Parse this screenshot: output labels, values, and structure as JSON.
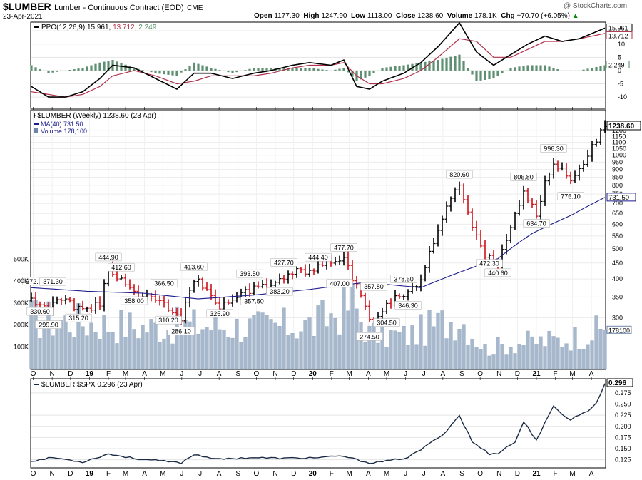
{
  "header": {
    "symbol": "$LUMBER",
    "description": "Lumber - Continuous Contract (EOD)",
    "exchange": "CME",
    "date": "23-Apr-2021",
    "watermark": "@ StockCharts.com",
    "quote": {
      "open_label": "Open",
      "open": "1177.30",
      "high_label": "High",
      "high": "1247.90",
      "low_label": "Low",
      "low": "1113.00",
      "close_label": "Close",
      "close": "1238.60",
      "volume_label": "Volume",
      "volume": "178.1K",
      "chg_label": "Chg",
      "chg": "+70.70 (+6.05%)",
      "chg_arrow": "▲"
    }
  },
  "ppo_panel": {
    "legend_name": "PPO(12,26,9)",
    "ppo_value": "15.961",
    "signal_value": "13.712",
    "hist_value": "2.249",
    "colors": {
      "ppo": "#000000",
      "signal": "#b0304a",
      "hist": "#5f8f72"
    },
    "axis_ticks": [
      "15",
      "10",
      "5",
      "0",
      "-5",
      "-10"
    ],
    "tag_ppo": "15.961",
    "tag_signal": "13.712",
    "tag_hist": "2.249"
  },
  "price_panel": {
    "legend_title": "$LUMBER (Weekly) 1238.60 (23 Apr)",
    "legend_ma": "MA(40) 731.50",
    "legend_volume": "Volume 178,100",
    "colors": {
      "up": "#000000",
      "down": "#d0101a",
      "ma": "#1c1c8c",
      "volume": "#a7b8cc"
    },
    "price_ticks": [
      "1200",
      "1150",
      "1100",
      "1050",
      "1000",
      "950",
      "900",
      "850",
      "800",
      "750",
      "700",
      "650",
      "600",
      "550",
      "500",
      "450",
      "400",
      "350",
      "300"
    ],
    "volume_ticks": [
      "500K",
      "400K",
      "300K",
      "200K",
      "100K"
    ],
    "tag_close": "1238.60",
    "tag_ma": "731.50",
    "tag_volume": "178100",
    "annotations": [
      {
        "text": "372.00",
        "date": "2018-10-05",
        "price": 372.0,
        "pos": "above"
      },
      {
        "text": "330.60",
        "date": "2018-10-12",
        "price": 330.6,
        "pos": "below"
      },
      {
        "text": "299.90",
        "date": "2018-10-26",
        "price": 299.9,
        "pos": "below"
      },
      {
        "text": "371.30",
        "date": "2018-11-02",
        "price": 371.3,
        "pos": "above"
      },
      {
        "text": "315.20",
        "date": "2018-12-14",
        "price": 315.2,
        "pos": "below"
      },
      {
        "text": "444.90",
        "date": "2019-02-01",
        "price": 444.9,
        "pos": "above"
      },
      {
        "text": "412.60",
        "date": "2019-02-22",
        "price": 412.6,
        "pos": "above"
      },
      {
        "text": "358.00",
        "date": "2019-03-15",
        "price": 358.0,
        "pos": "below"
      },
      {
        "text": "366.50",
        "date": "2019-05-03",
        "price": 366.5,
        "pos": "above"
      },
      {
        "text": "310.20",
        "date": "2019-05-10",
        "price": 310.2,
        "pos": "below"
      },
      {
        "text": "286.10",
        "date": "2019-05-31",
        "price": 286.1,
        "pos": "below"
      },
      {
        "text": "413.60",
        "date": "2019-06-21",
        "price": 413.6,
        "pos": "above"
      },
      {
        "text": "325.90",
        "date": "2019-08-02",
        "price": 325.9,
        "pos": "below"
      },
      {
        "text": "393.50",
        "date": "2019-09-20",
        "price": 393.5,
        "pos": "above"
      },
      {
        "text": "357.50",
        "date": "2019-09-27",
        "price": 357.5,
        "pos": "below"
      },
      {
        "text": "383.20",
        "date": "2019-11-08",
        "price": 383.2,
        "pos": "below"
      },
      {
        "text": "427.70",
        "date": "2019-11-15",
        "price": 427.7,
        "pos": "above"
      },
      {
        "text": "444.40",
        "date": "2020-01-10",
        "price": 444.4,
        "pos": "above"
      },
      {
        "text": "477.70",
        "date": "2020-02-21",
        "price": 477.7,
        "pos": "above"
      },
      {
        "text": "407.00",
        "date": "2020-02-14",
        "price": 407.0,
        "pos": "below"
      },
      {
        "text": "274.50",
        "date": "2020-04-03",
        "price": 274.5,
        "pos": "below"
      },
      {
        "text": "357.80",
        "date": "2020-04-10",
        "price": 357.8,
        "pos": "above"
      },
      {
        "text": "304.50",
        "date": "2020-05-01",
        "price": 304.5,
        "pos": "below"
      },
      {
        "text": "378.50",
        "date": "2020-05-29",
        "price": 378.5,
        "pos": "above"
      },
      {
        "text": "346.30",
        "date": "2020-06-05",
        "price": 346.3,
        "pos": "below"
      },
      {
        "text": "820.60",
        "date": "2020-08-28",
        "price": 820.6,
        "pos": "above"
      },
      {
        "text": "472.30",
        "date": "2020-10-16",
        "price": 472.3,
        "pos": "below"
      },
      {
        "text": "440.60",
        "date": "2020-10-30",
        "price": 440.6,
        "pos": "below"
      },
      {
        "text": "806.80",
        "date": "2020-12-11",
        "price": 806.8,
        "pos": "above"
      },
      {
        "text": "634.70",
        "date": "2021-01-01",
        "price": 634.7,
        "pos": "below"
      },
      {
        "text": "996.30",
        "date": "2021-01-29",
        "price": 996.3,
        "pos": "above"
      },
      {
        "text": "776.10",
        "date": "2021-02-26",
        "price": 776.1,
        "pos": "below"
      }
    ]
  },
  "ratio_panel": {
    "legend": "$LUMBER:$SPX 0.296 (23 Apr)",
    "color": "#1a2a44",
    "axis_ticks": [
      "0.275",
      "0.250",
      "0.225",
      "0.200",
      "0.175",
      "0.150",
      "0.125"
    ],
    "tag": "0.296"
  },
  "x_axis": {
    "labels": [
      {
        "text": "O",
        "date": "2018-10-01",
        "bold": false
      },
      {
        "text": "N",
        "date": "2018-11-01",
        "bold": false
      },
      {
        "text": "D",
        "date": "2018-12-01",
        "bold": false
      },
      {
        "text": "19",
        "date": "2019-01-01",
        "bold": true
      },
      {
        "text": "F",
        "date": "2019-02-01",
        "bold": false
      },
      {
        "text": "M",
        "date": "2019-03-01",
        "bold": false
      },
      {
        "text": "A",
        "date": "2019-04-01",
        "bold": false
      },
      {
        "text": "M",
        "date": "2019-05-01",
        "bold": false
      },
      {
        "text": "J",
        "date": "2019-06-01",
        "bold": false
      },
      {
        "text": "J",
        "date": "2019-07-01",
        "bold": false
      },
      {
        "text": "A",
        "date": "2019-08-01",
        "bold": false
      },
      {
        "text": "S",
        "date": "2019-09-01",
        "bold": false
      },
      {
        "text": "O",
        "date": "2019-10-01",
        "bold": false
      },
      {
        "text": "N",
        "date": "2019-11-01",
        "bold": false
      },
      {
        "text": "D",
        "date": "2019-12-01",
        "bold": false
      },
      {
        "text": "20",
        "date": "2020-01-01",
        "bold": true
      },
      {
        "text": "F",
        "date": "2020-02-01",
        "bold": false
      },
      {
        "text": "M",
        "date": "2020-03-01",
        "bold": false
      },
      {
        "text": "A",
        "date": "2020-04-01",
        "bold": false
      },
      {
        "text": "M",
        "date": "2020-05-01",
        "bold": false
      },
      {
        "text": "J",
        "date": "2020-06-01",
        "bold": false
      },
      {
        "text": "J",
        "date": "2020-07-01",
        "bold": false
      },
      {
        "text": "A",
        "date": "2020-08-01",
        "bold": false
      },
      {
        "text": "S",
        "date": "2020-09-01",
        "bold": false
      },
      {
        "text": "O",
        "date": "2020-10-01",
        "bold": false
      },
      {
        "text": "N",
        "date": "2020-11-01",
        "bold": false
      },
      {
        "text": "D",
        "date": "2020-12-01",
        "bold": false
      },
      {
        "text": "21",
        "date": "2021-01-01",
        "bold": true
      },
      {
        "text": "F",
        "date": "2021-02-01",
        "bold": false
      },
      {
        "text": "M",
        "date": "2021-03-01",
        "bold": false
      },
      {
        "text": "A",
        "date": "2021-04-01",
        "bold": false
      }
    ]
  },
  "chart_data": [
    {
      "type": "line",
      "panel": "ppo",
      "x_range": [
        "2018-09-28",
        "2021-04-23"
      ],
      "ylim": [
        -14,
        18
      ],
      "grid": true,
      "series_ppo": {
        "x": [
          "2018-09-28",
          "2018-10-26",
          "2018-11-23",
          "2018-12-21",
          "2019-01-18",
          "2019-02-08",
          "2019-03-15",
          "2019-04-19",
          "2019-05-24",
          "2019-06-21",
          "2019-07-19",
          "2019-08-23",
          "2019-09-27",
          "2019-10-25",
          "2019-11-29",
          "2019-12-27",
          "2020-01-31",
          "2020-02-21",
          "2020-03-13",
          "2020-04-03",
          "2020-04-24",
          "2020-05-29",
          "2020-06-26",
          "2020-07-24",
          "2020-08-28",
          "2020-09-25",
          "2020-10-23",
          "2020-11-20",
          "2020-12-18",
          "2021-01-15",
          "2021-02-12",
          "2021-03-12",
          "2021-04-23"
        ],
        "y": [
          -6,
          -10,
          -10,
          -8,
          -3,
          2,
          1,
          -3,
          -7,
          -1,
          -1,
          -3,
          -1,
          0,
          2,
          3,
          2,
          4,
          -6,
          -7,
          -4,
          -1,
          3,
          9,
          18,
          7,
          2,
          6,
          10,
          13,
          11,
          12,
          16
        ]
      },
      "series_signal": {
        "x": [
          "2018-09-28",
          "2018-10-26",
          "2018-11-23",
          "2018-12-21",
          "2019-01-18",
          "2019-02-08",
          "2019-03-15",
          "2019-04-19",
          "2019-05-24",
          "2019-06-21",
          "2019-07-19",
          "2019-08-23",
          "2019-09-27",
          "2019-10-25",
          "2019-11-29",
          "2019-12-27",
          "2020-01-31",
          "2020-02-21",
          "2020-03-13",
          "2020-04-03",
          "2020-04-24",
          "2020-05-29",
          "2020-06-26",
          "2020-07-24",
          "2020-08-28",
          "2020-09-25",
          "2020-10-23",
          "2020-11-20",
          "2020-12-18",
          "2021-01-15",
          "2021-02-12",
          "2021-03-12",
          "2021-04-23"
        ],
        "y": [
          -8,
          -9,
          -10,
          -9,
          -6,
          -2,
          0,
          -2,
          -5,
          -4,
          -2,
          -2,
          -2,
          -1,
          1,
          2,
          2,
          3,
          -2,
          -5,
          -5,
          -3,
          0,
          5,
          12,
          11,
          5,
          5,
          8,
          11,
          11,
          12,
          14
        ]
      }
    },
    {
      "type": "bar",
      "panel": "price",
      "title": "$LUMBER (Weekly) 1238.60 (23 Apr)",
      "scale": "log",
      "ylim": [
        250,
        1280
      ],
      "grid": true,
      "anchors": {
        "x": [
          "2018-09-28",
          "2018-10-12",
          "2018-10-26",
          "2018-11-09",
          "2018-12-14",
          "2019-01-18",
          "2019-02-01",
          "2019-03-15",
          "2019-04-12",
          "2019-05-31",
          "2019-06-21",
          "2019-08-02",
          "2019-09-20",
          "2019-10-18",
          "2019-11-15",
          "2019-12-27",
          "2020-01-10",
          "2020-02-21",
          "2020-03-20",
          "2020-04-03",
          "2020-05-01",
          "2020-05-29",
          "2020-06-26",
          "2020-07-17",
          "2020-08-07",
          "2020-08-28",
          "2020-09-18",
          "2020-10-09",
          "2020-10-30",
          "2020-11-20",
          "2020-12-11",
          "2021-01-01",
          "2021-01-29",
          "2021-02-26",
          "2021-03-19",
          "2021-04-09",
          "2021-04-23"
        ],
        "y": [
          340,
          330,
          310,
          350,
          320,
          330,
          430,
          360,
          350,
          300,
          400,
          330,
          370,
          375,
          410,
          430,
          440,
          460,
          350,
          290,
          330,
          360,
          390,
          520,
          680,
          800,
          590,
          470,
          450,
          590,
          760,
          650,
          960,
          820,
          930,
          1120,
          1238.6
        ]
      },
      "ma40": {
        "x": [
          "2018-09-28",
          "2018-12-28",
          "2019-03-29",
          "2019-06-28",
          "2019-09-27",
          "2019-12-27",
          "2020-03-27",
          "2020-06-26",
          "2020-08-28",
          "2020-10-30",
          "2020-12-25",
          "2021-02-26",
          "2021-04-23"
        ],
        "y": [
          375,
          365,
          360,
          345,
          355,
          370,
          390,
          375,
          420,
          465,
          560,
          640,
          731.5
        ]
      }
    },
    {
      "type": "bar",
      "panel": "volume",
      "ylim": [
        0,
        560000
      ],
      "anchors": {
        "x": [
          "2018-09-28",
          "2019-01-04",
          "2019-04-05",
          "2019-07-05",
          "2019-10-04",
          "2020-01-03",
          "2020-03-06",
          "2020-04-03",
          "2020-06-05",
          "2020-08-28",
          "2020-10-09",
          "2020-12-04",
          "2021-02-05",
          "2021-04-23"
        ],
        "y": [
          230000,
          210000,
          190000,
          200000,
          190000,
          200000,
          300000,
          160000,
          150000,
          240000,
          90000,
          120000,
          130000,
          178100
        ]
      }
    },
    {
      "type": "line",
      "panel": "ratio",
      "title": "$LUMBER:$SPX 0.296 (23 Apr)",
      "ylim": [
        0.11,
        0.302
      ],
      "grid": true,
      "x": [
        "2018-09-28",
        "2018-11-02",
        "2018-12-21",
        "2019-02-01",
        "2019-03-15",
        "2019-05-31",
        "2019-06-21",
        "2019-08-02",
        "2019-09-20",
        "2019-11-15",
        "2020-01-10",
        "2020-02-21",
        "2020-03-13",
        "2020-04-03",
        "2020-05-01",
        "2020-06-05",
        "2020-07-10",
        "2020-08-07",
        "2020-08-28",
        "2020-09-18",
        "2020-10-16",
        "2020-10-30",
        "2020-11-27",
        "2020-12-11",
        "2021-01-01",
        "2021-01-29",
        "2021-02-26",
        "2021-03-19",
        "2021-04-09",
        "2021-04-23"
      ],
      "y": [
        0.122,
        0.13,
        0.12,
        0.138,
        0.128,
        0.118,
        0.137,
        0.126,
        0.13,
        0.128,
        0.13,
        0.133,
        0.125,
        0.118,
        0.122,
        0.13,
        0.16,
        0.19,
        0.225,
        0.165,
        0.138,
        0.14,
        0.165,
        0.21,
        0.17,
        0.243,
        0.215,
        0.23,
        0.25,
        0.296
      ]
    }
  ]
}
